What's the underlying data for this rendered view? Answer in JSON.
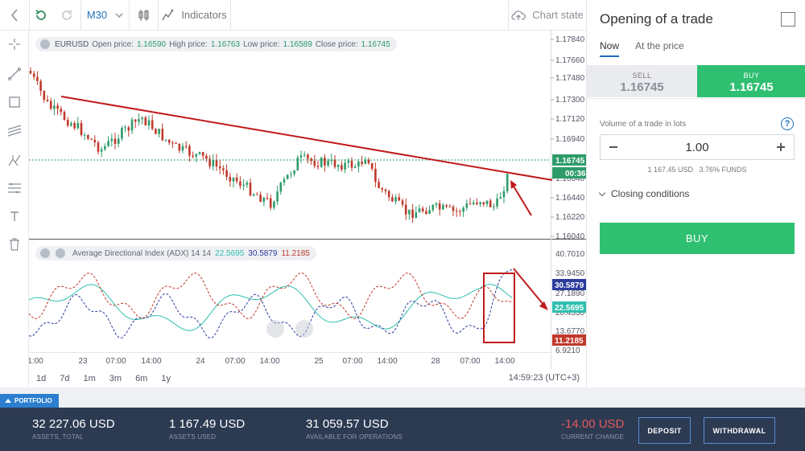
{
  "toolbar": {
    "interval": "M30",
    "indicators_label": "Indicators",
    "chart_state_label": "Chart state"
  },
  "chart": {
    "legend_symbol": "EURUSD",
    "legend_open_label": "Open price:",
    "legend_open": "1.16590",
    "legend_high_label": "High price:",
    "legend_high": "1.16763",
    "legend_low_label": "Low price:",
    "legend_low": "1.16589",
    "legend_close_label": "Close price:",
    "legend_close": "1.16745",
    "price_ticks": [
      "1.17840",
      "1.17660",
      "1.17480",
      "1.17300",
      "1.17120",
      "1.16940",
      "1.16640",
      "1.16440",
      "1.16220",
      "1.16040"
    ],
    "current_price": "1.16745",
    "countdown": "00:36",
    "adx_title": "Average Directional Index (ADX) 14 14",
    "adx_val1": "22.5695",
    "adx_val2": "30.5879",
    "adx_val3": "11.2185",
    "adx_ticks": [
      "40.7010",
      "33.9450",
      "27.1890",
      "20.4330",
      "13.6770",
      "6.9210"
    ],
    "time_labels": [
      "1:00",
      "23",
      "07:00",
      "14:00",
      "24",
      "07:00",
      "14:00",
      "25",
      "07:00",
      "14:00",
      "28",
      "07:00",
      "14:00"
    ],
    "ranges": [
      "1d",
      "7d",
      "1m",
      "3m",
      "6m",
      "1y"
    ],
    "clock": "14:59:23 (UTC+3)",
    "colors": {
      "bull": "#2e9b6a",
      "bear": "#c0392b",
      "trendline": "#c0191b",
      "adx": "#2fbfae",
      "plus_di": "#2b3c9c",
      "minus_di": "#c0392b"
    }
  },
  "panel": {
    "title": "Opening of a trade",
    "tab_now": "Now",
    "tab_price": "At the price",
    "sell_label": "SELL",
    "sell_price": "1.16745",
    "buy_label": "BUY",
    "buy_price": "1.16745",
    "volume_label": "Volume of a trade in lots",
    "volume_value": "1.00",
    "sub_amount": "1 167.45 USD",
    "sub_funds": "3.76% FUNDS",
    "closing_label": "Closing conditions",
    "buy_button": "BUY"
  },
  "footer": {
    "portfolio_label": "PORTFOLIO",
    "assets_total": "32 227.06 USD",
    "assets_total_label": "ASSETS, TOTAL",
    "assets_used": "1 167.49 USD",
    "assets_used_label": "ASSETS USED",
    "available": "31 059.57 USD",
    "available_label": "AVAILABLE FOR OPERATIONS",
    "change": "-14.00 USD",
    "change_label": "CURRENT CHANGE",
    "deposit": "DEPOSIT",
    "withdrawal": "WITHDRAWAL"
  }
}
